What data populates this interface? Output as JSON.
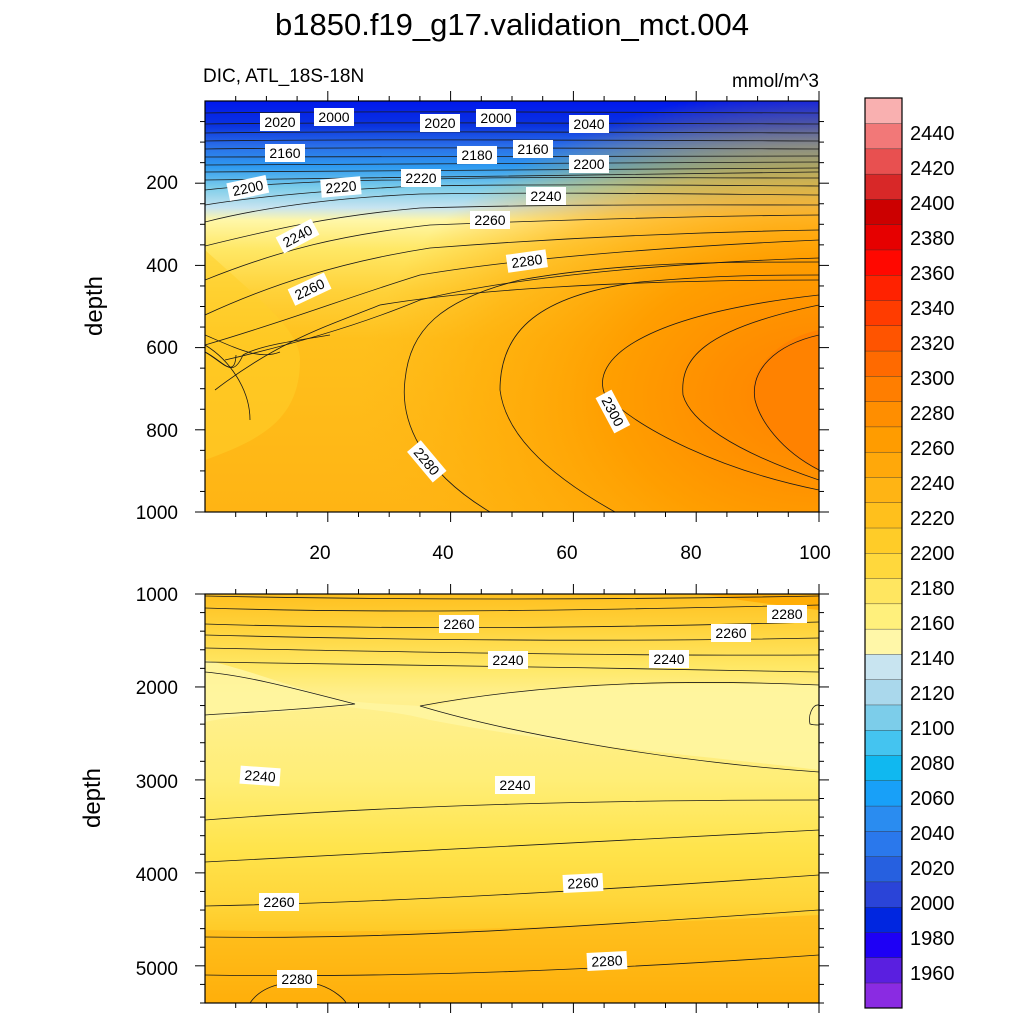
{
  "chart_data": {
    "type": "contour",
    "title": "b1850.f19_g17.validation_mct.004",
    "variable_region": "DIC, ATL_18S-18N",
    "units": "mmol/m^3",
    "colorbar": {
      "levels": [
        1960,
        1980,
        2000,
        2020,
        2040,
        2060,
        2080,
        2100,
        2120,
        2140,
        2160,
        2180,
        2200,
        2220,
        2240,
        2260,
        2280,
        2300,
        2320,
        2340,
        2360,
        2380,
        2400,
        2420,
        2440
      ],
      "colors": [
        "#8a2be2",
        "#5a1fe0",
        "#1e00f5",
        "#0026e0",
        "#2a44d8",
        "#2660e0",
        "#2a78ec",
        "#2a8cf0",
        "#18a0f8",
        "#10b8f0",
        "#44c4f0",
        "#7ccdea",
        "#aad8ec",
        "#c8e4f0",
        "#fff7a8",
        "#fff07c",
        "#ffe660",
        "#ffd83c",
        "#ffcc28",
        "#ffc01c",
        "#ffb414",
        "#ffa80a",
        "#ff9c00",
        "#ff8e00",
        "#ff7e00",
        "#ff6a00",
        "#ff5400",
        "#ff3c00",
        "#ff2200",
        "#ff0800",
        "#e60000",
        "#cc0000",
        "#d82828",
        "#e85050",
        "#f27878",
        "#f9b0b0"
      ],
      "tick_labels": [
        "1960",
        "1980",
        "2000",
        "2020",
        "2040",
        "2060",
        "2080",
        "2100",
        "2120",
        "2140",
        "2160",
        "2180",
        "2200",
        "2220",
        "2240",
        "2260",
        "2280",
        "2300",
        "2320",
        "2340",
        "2360",
        "2380",
        "2400",
        "2420",
        "2440"
      ]
    },
    "panels": [
      {
        "name": "upper",
        "ylabel": "depth",
        "xlim": [
          0,
          100
        ],
        "ylim": [
          0,
          1000
        ],
        "xticks": [
          "20",
          "40",
          "60",
          "80",
          "100"
        ],
        "yticks": [
          "200",
          "400",
          "600",
          "800",
          "1000"
        ],
        "contour_labels": [
          "2000",
          "2000",
          "2020",
          "2020",
          "2040",
          "2160",
          "2160",
          "2180",
          "2200",
          "2200",
          "2220",
          "2220",
          "2240",
          "2240",
          "2260",
          "2260",
          "2280",
          "2280",
          "2300"
        ]
      },
      {
        "name": "lower",
        "ylabel": "depth",
        "xlim": [
          0,
          100
        ],
        "ylim": [
          1000,
          5400
        ],
        "yticks": [
          "1000",
          "2000",
          "3000",
          "4000",
          "5000"
        ],
        "contour_labels": [
          "2280",
          "2260",
          "2260",
          "2240",
          "2240",
          "2240",
          "2240",
          "2260",
          "2260",
          "2280",
          "2280"
        ]
      }
    ]
  }
}
